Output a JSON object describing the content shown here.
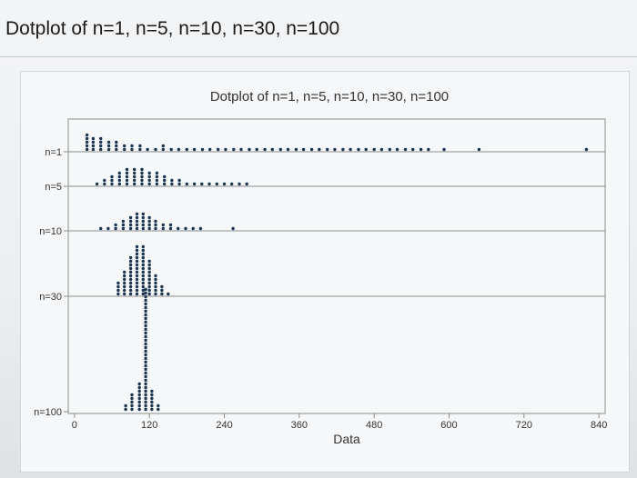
{
  "page": {
    "heading": "Dotplot of n=1, n=5, n=10, n=30, n=100"
  },
  "chart_data": {
    "type": "dotplot",
    "title": "Dotplot of n=1, n=5, n=10, n=30, n=100",
    "xlabel": "Data",
    "ylabel": "",
    "xlim": [
      -10,
      850
    ],
    "xticks": [
      0,
      120,
      240,
      360,
      480,
      600,
      720,
      840
    ],
    "grid": false,
    "panels": [
      {
        "name": "n=1",
        "counts": [
          [
            20,
            5
          ],
          [
            30,
            4
          ],
          [
            42,
            4
          ],
          [
            55,
            3
          ],
          [
            67,
            3
          ],
          [
            80,
            2
          ],
          [
            92,
            2
          ],
          [
            105,
            2
          ],
          [
            117,
            1
          ],
          [
            130,
            1
          ],
          [
            142,
            2
          ],
          [
            155,
            1
          ],
          [
            167,
            1
          ],
          [
            180,
            1
          ],
          [
            192,
            1
          ],
          [
            205,
            1
          ],
          [
            217,
            1
          ],
          [
            230,
            1
          ],
          [
            242,
            1
          ],
          [
            255,
            1
          ],
          [
            267,
            1
          ],
          [
            280,
            1
          ],
          [
            292,
            1
          ],
          [
            305,
            1
          ],
          [
            317,
            1
          ],
          [
            330,
            1
          ],
          [
            342,
            1
          ],
          [
            355,
            1
          ],
          [
            367,
            1
          ],
          [
            380,
            1
          ],
          [
            392,
            1
          ],
          [
            405,
            1
          ],
          [
            417,
            1
          ],
          [
            430,
            1
          ],
          [
            442,
            1
          ],
          [
            455,
            1
          ],
          [
            467,
            1
          ],
          [
            480,
            1
          ],
          [
            492,
            1
          ],
          [
            505,
            1
          ],
          [
            517,
            1
          ],
          [
            530,
            1
          ],
          [
            542,
            1
          ],
          [
            555,
            1
          ],
          [
            567,
            1
          ],
          [
            592,
            1
          ],
          [
            648,
            1
          ],
          [
            820,
            1
          ]
        ]
      },
      {
        "name": "n=5",
        "counts": [
          [
            36,
            1
          ],
          [
            48,
            2
          ],
          [
            60,
            3
          ],
          [
            72,
            4
          ],
          [
            84,
            5
          ],
          [
            96,
            5
          ],
          [
            108,
            5
          ],
          [
            120,
            4
          ],
          [
            132,
            4
          ],
          [
            144,
            3
          ],
          [
            156,
            2
          ],
          [
            168,
            2
          ],
          [
            180,
            1
          ],
          [
            192,
            1
          ],
          [
            204,
            1
          ],
          [
            216,
            1
          ],
          [
            228,
            1
          ],
          [
            240,
            1
          ],
          [
            252,
            1
          ],
          [
            264,
            1
          ],
          [
            276,
            1
          ]
        ]
      },
      {
        "name": "n=10",
        "counts": [
          [
            42,
            1
          ],
          [
            54,
            1
          ],
          [
            66,
            2
          ],
          [
            78,
            3
          ],
          [
            90,
            4
          ],
          [
            100,
            5
          ],
          [
            110,
            5
          ],
          [
            120,
            4
          ],
          [
            130,
            3
          ],
          [
            142,
            2
          ],
          [
            154,
            2
          ],
          [
            166,
            1
          ],
          [
            178,
            1
          ],
          [
            190,
            1
          ],
          [
            202,
            1
          ],
          [
            254,
            1
          ]
        ]
      },
      {
        "name": "n=30",
        "counts": [
          [
            70,
            4
          ],
          [
            80,
            7
          ],
          [
            90,
            11
          ],
          [
            100,
            14
          ],
          [
            110,
            14
          ],
          [
            120,
            10
          ],
          [
            130,
            6
          ],
          [
            140,
            3
          ],
          [
            150,
            1
          ]
        ]
      },
      {
        "name": "n=100",
        "counts": [
          [
            82,
            2
          ],
          [
            92,
            5
          ],
          [
            104,
            8
          ],
          [
            114,
            34
          ],
          [
            124,
            6
          ],
          [
            134,
            2
          ]
        ]
      }
    ]
  }
}
